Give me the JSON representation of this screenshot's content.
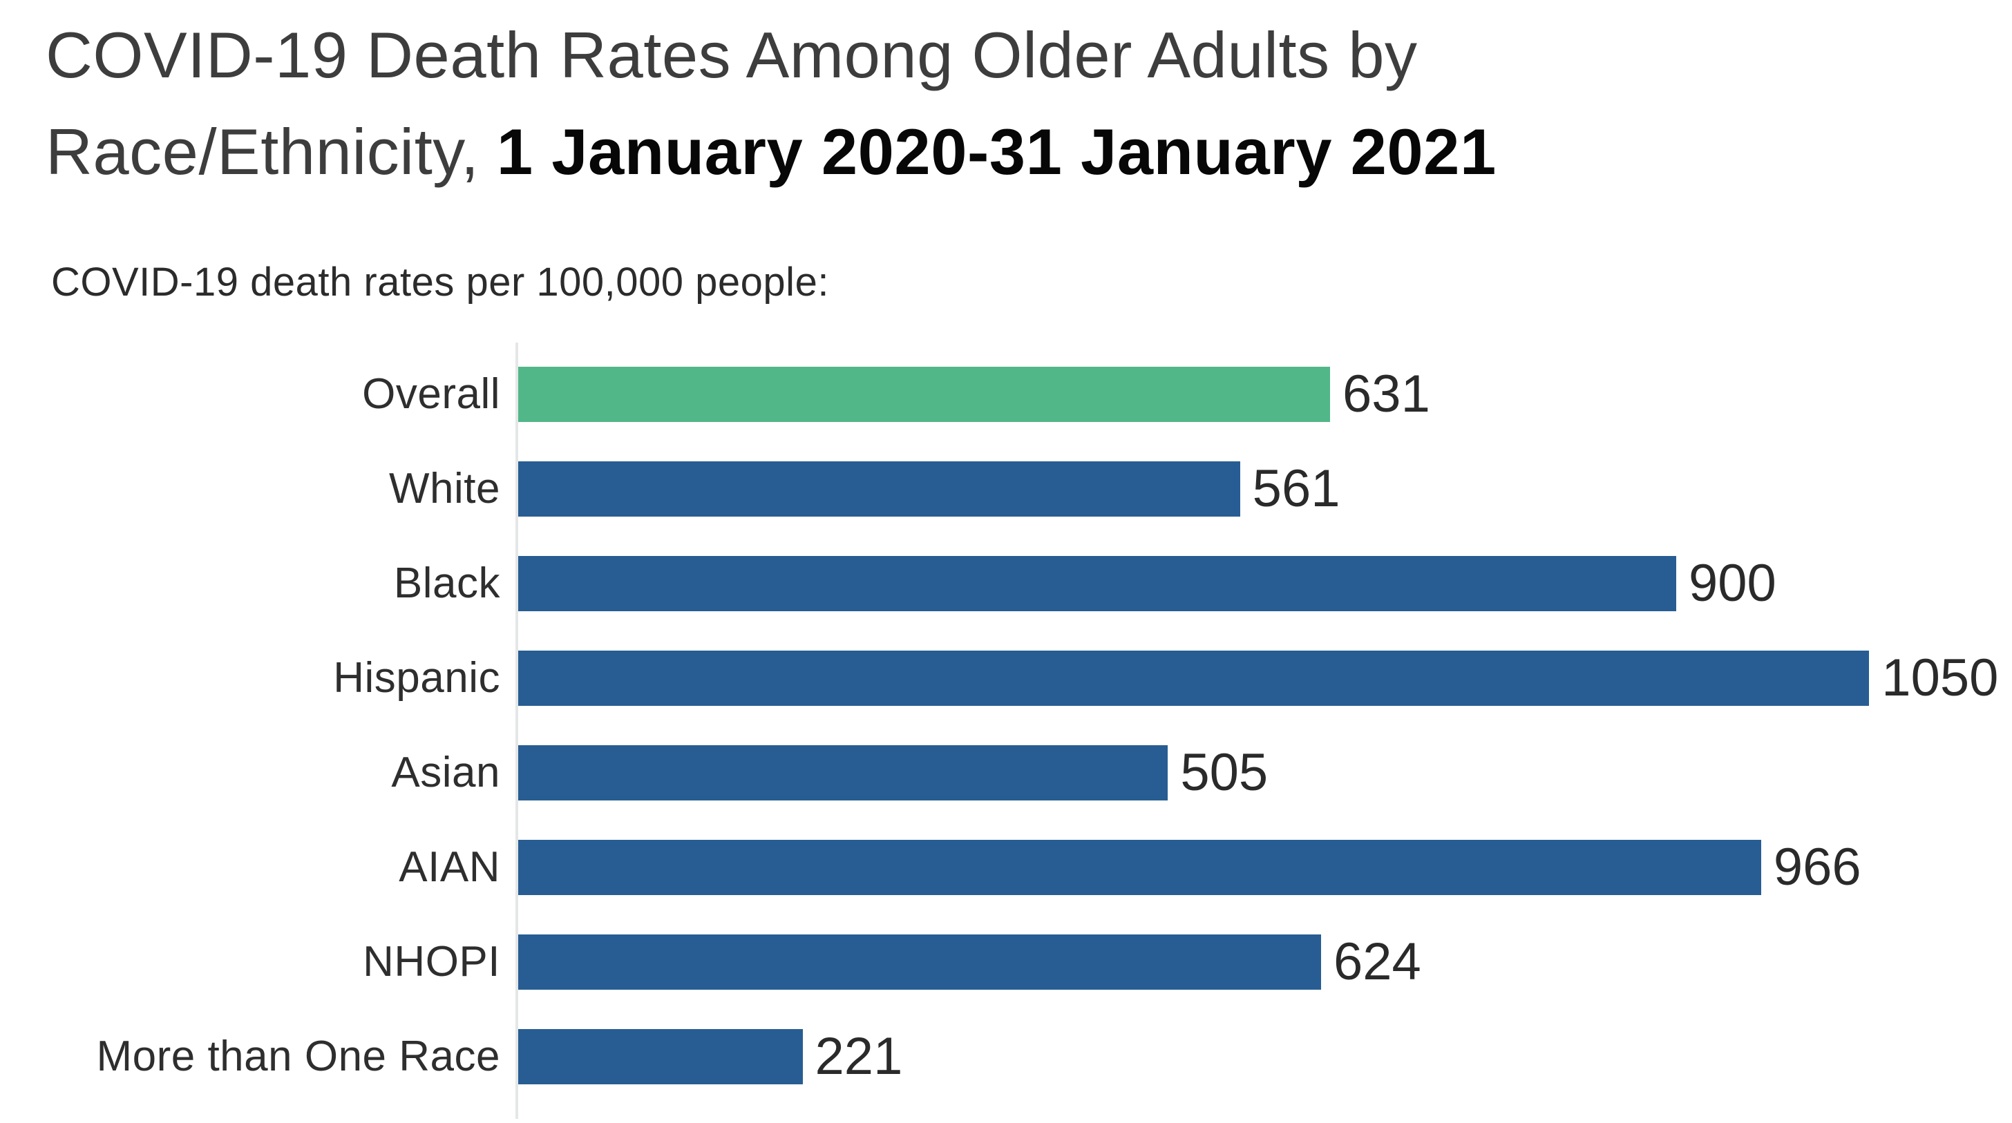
{
  "header": {
    "title_line1": "COVID-19 Death Rates Among Older Adults by",
    "title_line2_regular": "Race/Ethnicity,",
    "title_line2_bold": "1 January 2020-31 January 2021",
    "subtitle": "COVID-19 death rates per 100,000 people:"
  },
  "colors": {
    "highlight_bar": "#52b788",
    "default_bar": "#275d92",
    "axis_line": "#e4e7e7",
    "title_text": "#3d3d3d",
    "title_bold_text": "#070707",
    "label_text": "#2e2e2e"
  },
  "chart_data": {
    "type": "bar",
    "orientation": "horizontal",
    "title": "COVID-19 Death Rates Among Older Adults by Race/Ethnicity, 1 January 2020-31 January 2021",
    "subtitle": "COVID-19 death rates per 100,000 people:",
    "categories": [
      "Overall",
      "White",
      "Black",
      "Hispanic",
      "Asian",
      "AIAN",
      "NHOPI",
      "More than One Race"
    ],
    "values": [
      631,
      561,
      900,
      1050,
      505,
      966,
      624,
      221
    ],
    "bar_colors": [
      "#52b788",
      "#275d92",
      "#275d92",
      "#275d92",
      "#275d92",
      "#275d92",
      "#275d92",
      "#275d92"
    ],
    "data_labels": [
      "631",
      "561",
      "900",
      "1050",
      "505",
      "966",
      "624",
      "221"
    ],
    "xlabel": "",
    "ylabel": "",
    "xlim": [
      0,
      1161
    ],
    "grid": false,
    "legend": false,
    "value_axis_ticks": "hidden"
  }
}
